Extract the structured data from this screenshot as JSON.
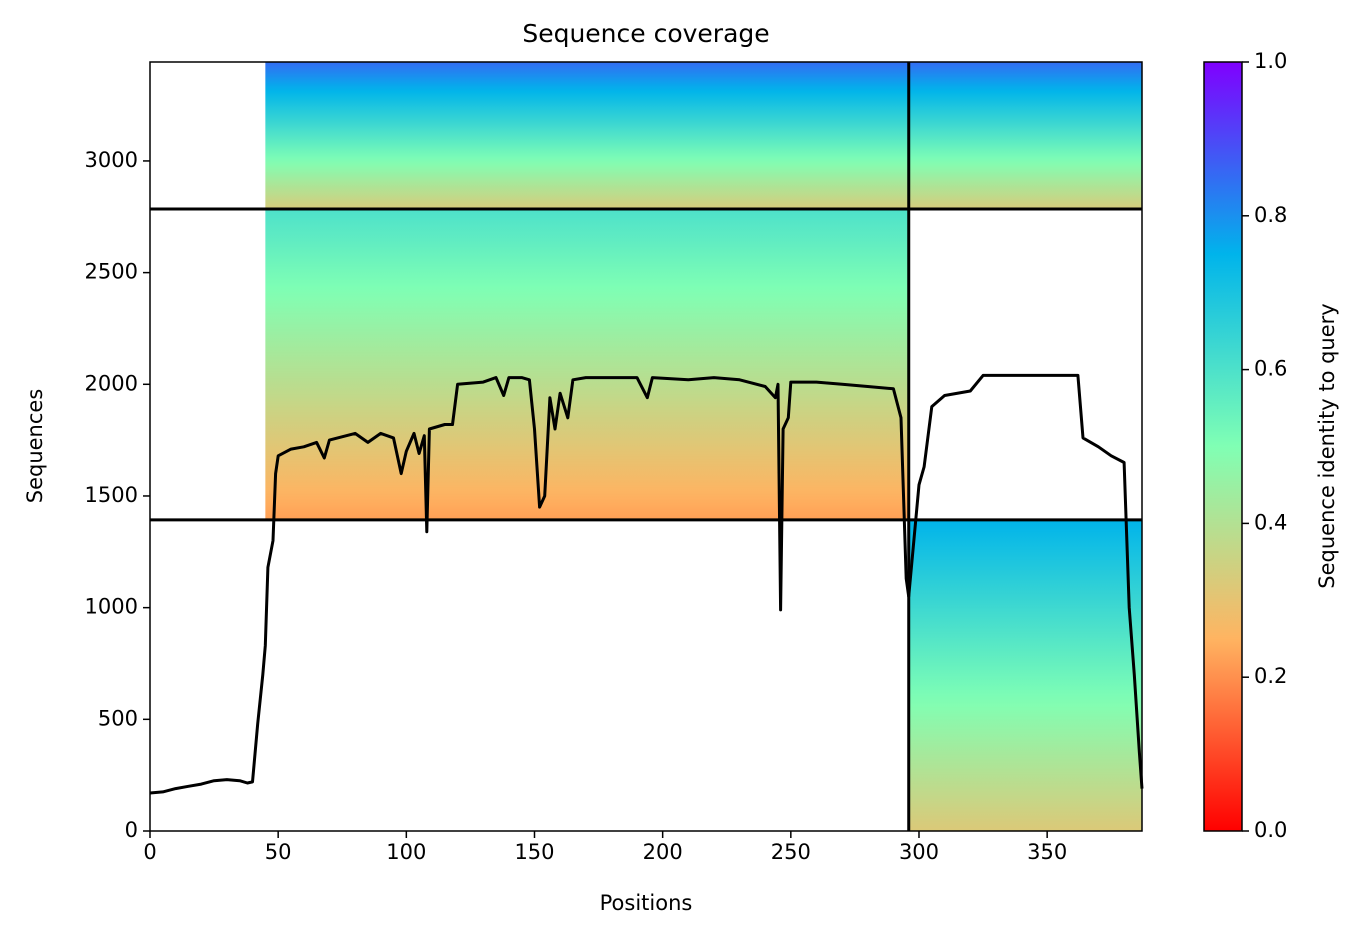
{
  "chart_data": {
    "type": "coverage",
    "title": "Sequence coverage",
    "xlabel": "Positions",
    "ylabel": "Sequences",
    "colorbar_label": "Sequence identity to query",
    "xlim": [
      0,
      387
    ],
    "ylim": [
      0,
      3443
    ],
    "xticks": [
      0,
      50,
      100,
      150,
      200,
      250,
      300,
      350
    ],
    "yticks": [
      0,
      500,
      1000,
      1500,
      2000,
      2500,
      3000
    ],
    "clim": [
      0,
      1
    ],
    "cticks": [
      {
        "value": 0,
        "label": "0.0"
      },
      {
        "value": 0.2,
        "label": "0.2"
      },
      {
        "value": 0.4,
        "label": "0.4"
      },
      {
        "value": 0.6,
        "label": "0.6"
      },
      {
        "value": 0.8,
        "label": "0.8"
      },
      {
        "value": 1,
        "label": "1.0"
      }
    ],
    "colormap": [
      "#ff0000",
      "#ffb461",
      "#80ffb4",
      "#00b4eb",
      "#8000ff"
    ],
    "blocks": [
      {
        "x": [
          296,
          387
        ],
        "y": [
          0,
          1393
        ],
        "identity": [
          0.32,
          0.75
        ]
      },
      {
        "x": [
          45,
          296
        ],
        "y": [
          1393,
          2785
        ],
        "identity": [
          0.22,
          0.6
        ]
      },
      {
        "x": [
          45,
          387
        ],
        "y": [
          2785,
          3443
        ],
        "identity": [
          0.33,
          0.85
        ]
      }
    ],
    "boundaries_x": [
      296
    ],
    "boundaries_y": [
      1393,
      2785
    ],
    "line_color": "#000000",
    "x": [
      0,
      5,
      10,
      15,
      20,
      25,
      30,
      35,
      38,
      40,
      42,
      44,
      45,
      46,
      48,
      49,
      50,
      55,
      60,
      65,
      68,
      70,
      80,
      85,
      90,
      95,
      98,
      100,
      103,
      105,
      107,
      108,
      109,
      115,
      118,
      120,
      130,
      135,
      138,
      140,
      145,
      148,
      150,
      152,
      154,
      156,
      158,
      160,
      163,
      165,
      170,
      180,
      190,
      194,
      196,
      210,
      220,
      230,
      240,
      244,
      245,
      246,
      247,
      249,
      250,
      260,
      270,
      280,
      290,
      293,
      295,
      296,
      300,
      302,
      305,
      310,
      320,
      325,
      340,
      350,
      362,
      364,
      370,
      375,
      380,
      382,
      384,
      386,
      387
    ],
    "values": [
      170,
      175,
      190,
      200,
      210,
      225,
      230,
      225,
      215,
      220,
      480,
      700,
      830,
      1180,
      1300,
      1600,
      1680,
      1710,
      1720,
      1740,
      1670,
      1750,
      1780,
      1740,
      1780,
      1760,
      1600,
      1700,
      1780,
      1690,
      1770,
      1340,
      1800,
      1820,
      1820,
      2000,
      2010,
      2030,
      1950,
      2030,
      2030,
      2020,
      1800,
      1450,
      1500,
      1940,
      1800,
      1960,
      1850,
      2020,
      2030,
      2030,
      2030,
      1940,
      2030,
      2020,
      2030,
      2020,
      1990,
      1940,
      2000,
      990,
      1800,
      1850,
      2010,
      2010,
      2000,
      1990,
      1980,
      1850,
      1130,
      1050,
      1550,
      1630,
      1900,
      1950,
      1970,
      2040,
      2040,
      2040,
      2040,
      1760,
      1720,
      1680,
      1650,
      1000,
      700,
      350,
      190
    ]
  }
}
